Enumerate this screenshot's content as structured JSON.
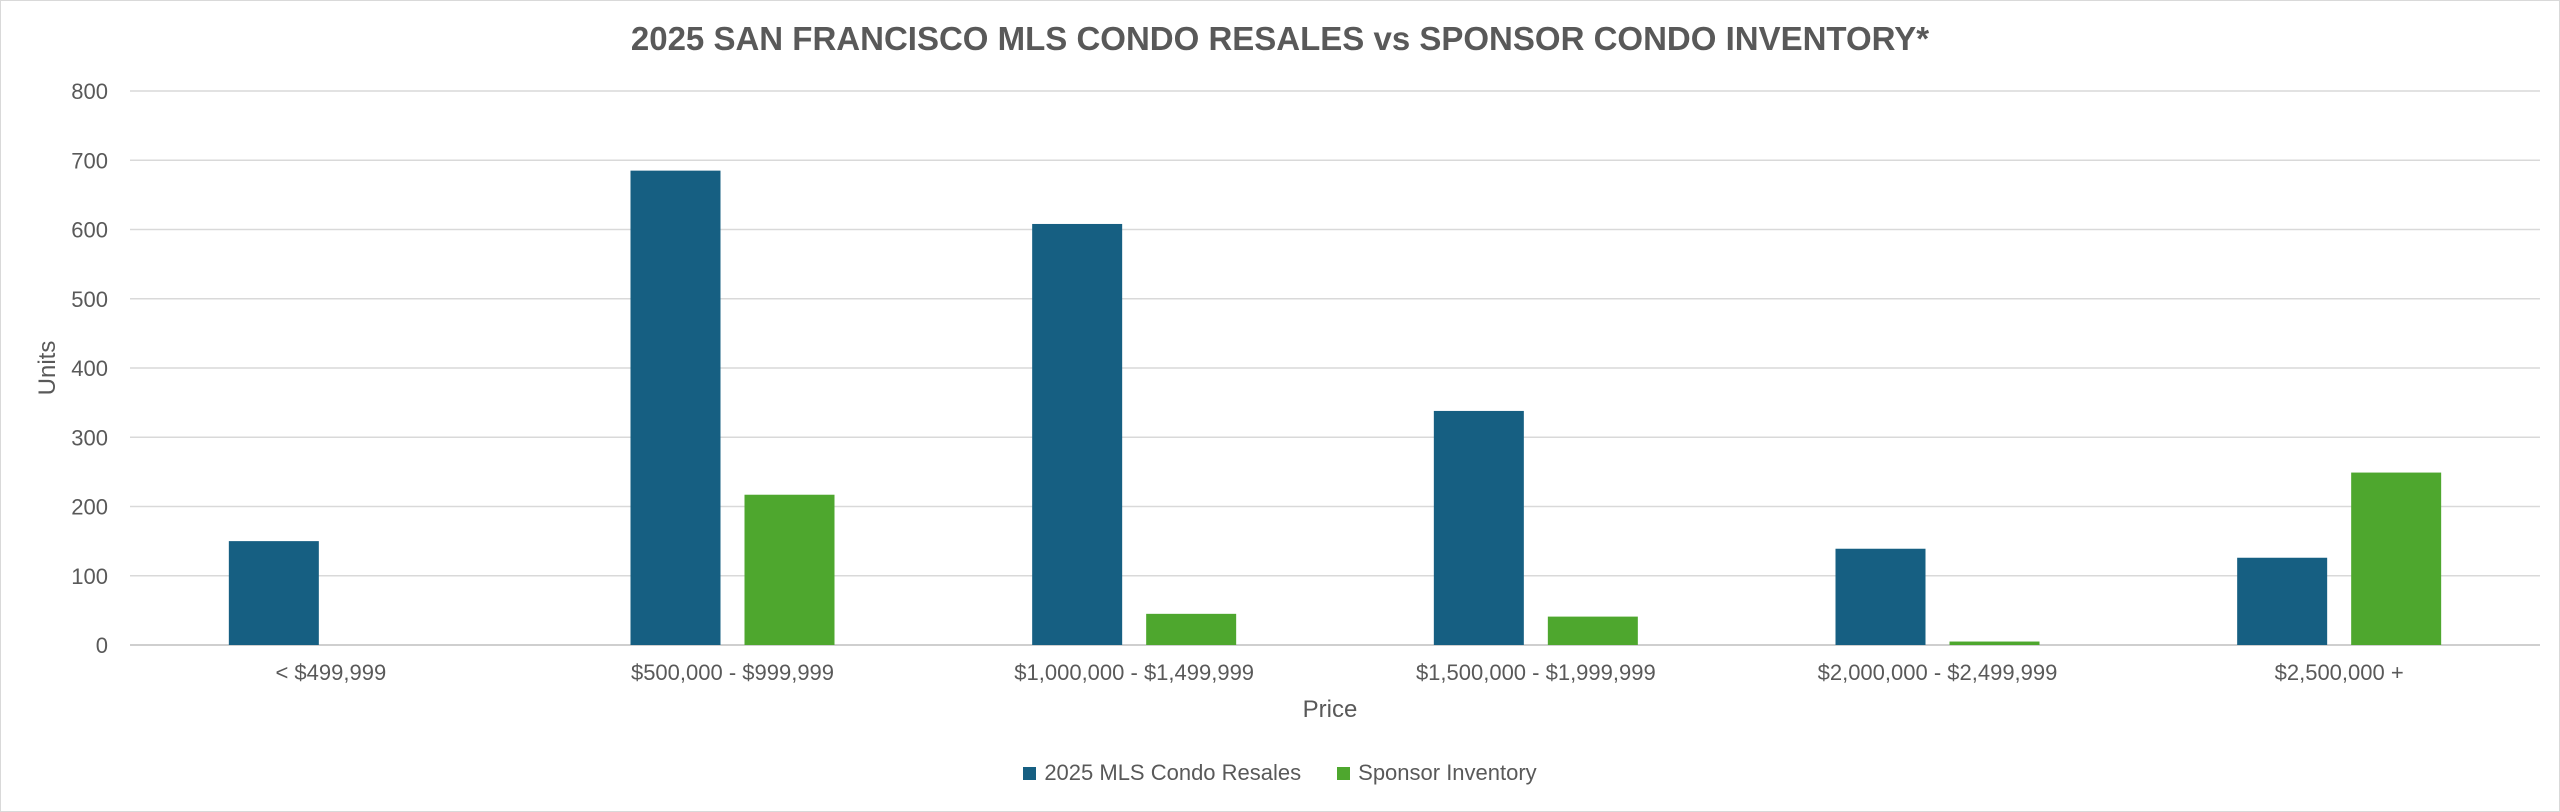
{
  "chart_data": {
    "type": "bar",
    "title": "2025 SAN FRANCISCO MLS CONDO RESALES vs SPONSOR CONDO INVENTORY*",
    "xlabel": "Price",
    "ylabel": "Units",
    "ylim": [
      0,
      800
    ],
    "yticks": [
      0,
      100,
      200,
      300,
      400,
      500,
      600,
      700,
      800
    ],
    "grid": true,
    "legend_position": "bottom",
    "categories": [
      "< $499,999",
      "$500,000 - $999,999",
      "$1,000,000 - $1,499,999",
      "$1,500,000 - $1,999,999",
      "$2,000,000 - $2,499,999",
      "$2,500,000 +"
    ],
    "series": [
      {
        "name": "2025 MLS Condo Resales",
        "color": "#165f82",
        "values": [
          150,
          685,
          608,
          338,
          139,
          126
        ]
      },
      {
        "name": "Sponsor Inventory",
        "color": "#4ea72e",
        "values": [
          0,
          217,
          45,
          41,
          5,
          249
        ]
      }
    ]
  }
}
